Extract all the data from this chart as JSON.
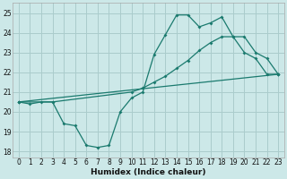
{
  "xlabel": "Humidex (Indice chaleur)",
  "bg_color": "#cce8e8",
  "grid_color": "#aacccc",
  "line_color": "#1a7a6e",
  "xlim": [
    -0.5,
    23.5
  ],
  "ylim": [
    17.7,
    25.5
  ],
  "xticks": [
    0,
    1,
    2,
    3,
    4,
    5,
    6,
    7,
    8,
    9,
    10,
    11,
    12,
    13,
    14,
    15,
    16,
    17,
    18,
    19,
    20,
    21,
    22,
    23
  ],
  "yticks": [
    18,
    19,
    20,
    21,
    22,
    23,
    24,
    25
  ],
  "series": [
    {
      "x": [
        0,
        1,
        2,
        3,
        4,
        5,
        6,
        7,
        8,
        9,
        10,
        11,
        12,
        13,
        14,
        15,
        16,
        17,
        18,
        19,
        20,
        21,
        22,
        23
      ],
      "y": [
        20.5,
        20.4,
        20.5,
        20.5,
        19.4,
        19.3,
        18.3,
        18.2,
        18.3,
        20.0,
        20.7,
        21.0,
        22.9,
        23.9,
        24.9,
        24.9,
        24.3,
        24.5,
        24.8,
        23.8,
        23.0,
        22.7,
        21.9,
        21.9
      ]
    },
    {
      "x": [
        0,
        23
      ],
      "y": [
        20.5,
        21.9
      ]
    },
    {
      "x": [
        0,
        3,
        10,
        11,
        12,
        13,
        14,
        15,
        16,
        17,
        18,
        19,
        20,
        21,
        22,
        23
      ],
      "y": [
        20.5,
        20.5,
        21.0,
        21.2,
        21.5,
        21.8,
        22.2,
        22.6,
        23.1,
        23.5,
        23.8,
        23.8,
        23.8,
        23.0,
        22.7,
        21.9
      ]
    }
  ]
}
